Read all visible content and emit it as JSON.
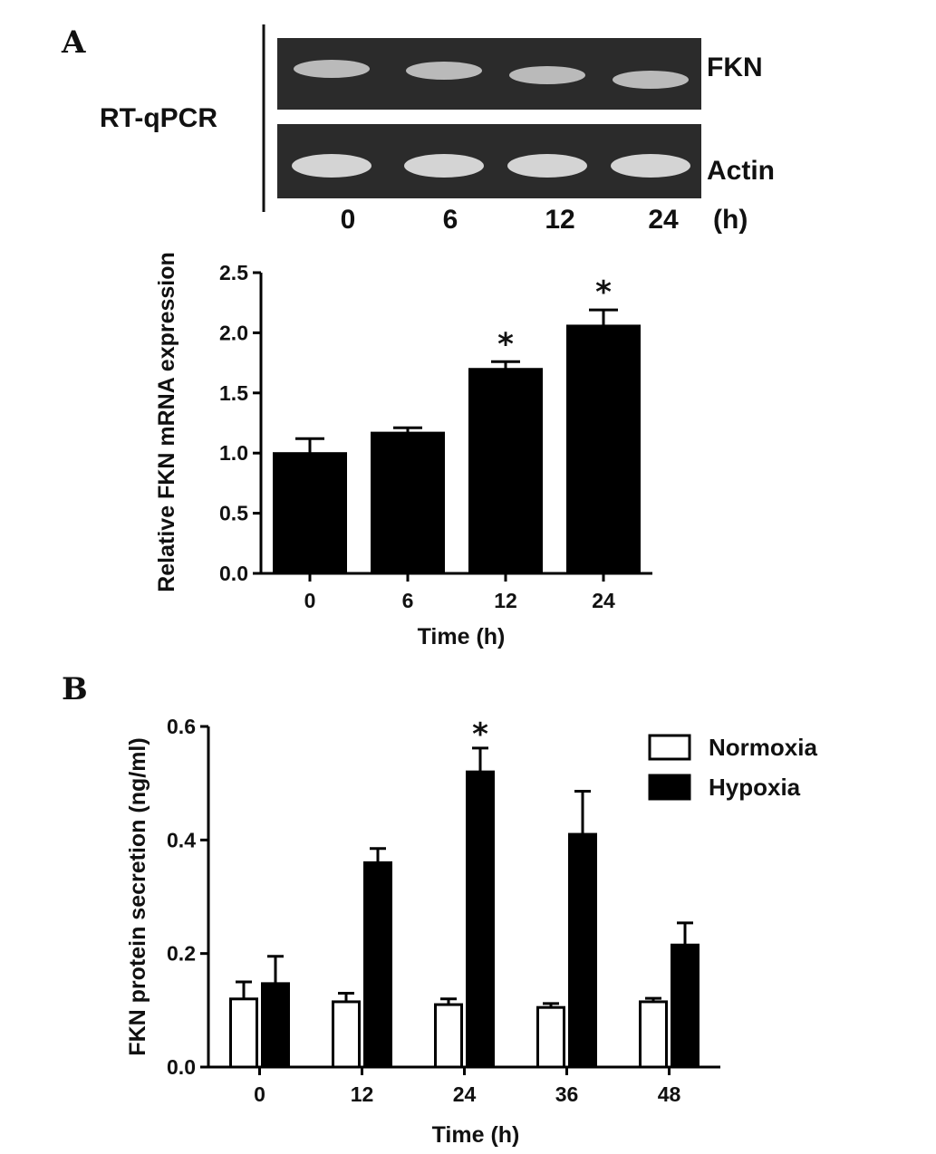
{
  "panels": {
    "a_letter": "A",
    "b_letter": "B"
  },
  "gel": {
    "method_label": "RT-qPCR",
    "upper_band_label": "FKN",
    "lower_band_label": "Actin",
    "lane_labels": [
      "0",
      "6",
      "12",
      "24"
    ],
    "unit_label": "(h)",
    "colors": {
      "background": "#2b2b2b",
      "band": "#d4d4d4"
    }
  },
  "chart_data": [
    {
      "type": "bar",
      "xlabel": "Time (h)",
      "ylabel": "Relative FKN mRNA expression",
      "categories": [
        "0",
        "6",
        "12",
        "24"
      ],
      "values": [
        1.0,
        1.17,
        1.7,
        2.06
      ],
      "errors": [
        0.12,
        0.04,
        0.06,
        0.13
      ],
      "significance": [
        "",
        "",
        "*",
        "*"
      ],
      "ylim": [
        0,
        2.5
      ],
      "yticks": [
        "0.0",
        "0.5",
        "1.0",
        "1.5",
        "2.0",
        "2.5"
      ],
      "bar_color": "#000000",
      "grid": false
    },
    {
      "type": "bar",
      "xlabel": "Time (h)",
      "ylabel": "FKN protein secretion (ng/ml)",
      "categories": [
        "0",
        "12",
        "24",
        "36",
        "48"
      ],
      "series": [
        {
          "name": "Normoxia",
          "values": [
            0.12,
            0.115,
            0.11,
            0.105,
            0.115
          ],
          "errors": [
            0.03,
            0.015,
            0.01,
            0.007,
            0.006
          ],
          "fill": "#ffffff"
        },
        {
          "name": "Hypoxia",
          "values": [
            0.147,
            0.36,
            0.52,
            0.41,
            0.215
          ],
          "errors": [
            0.048,
            0.025,
            0.042,
            0.076,
            0.039
          ],
          "fill": "#000000"
        }
      ],
      "significance": {
        "series": "Hypoxia",
        "marks": [
          "",
          "",
          "*",
          "",
          ""
        ]
      },
      "ylim": [
        0,
        0.6
      ],
      "yticks": [
        "0.0",
        "0.2",
        "0.4",
        "0.6"
      ],
      "legend_position": "top-right",
      "grid": false
    }
  ]
}
